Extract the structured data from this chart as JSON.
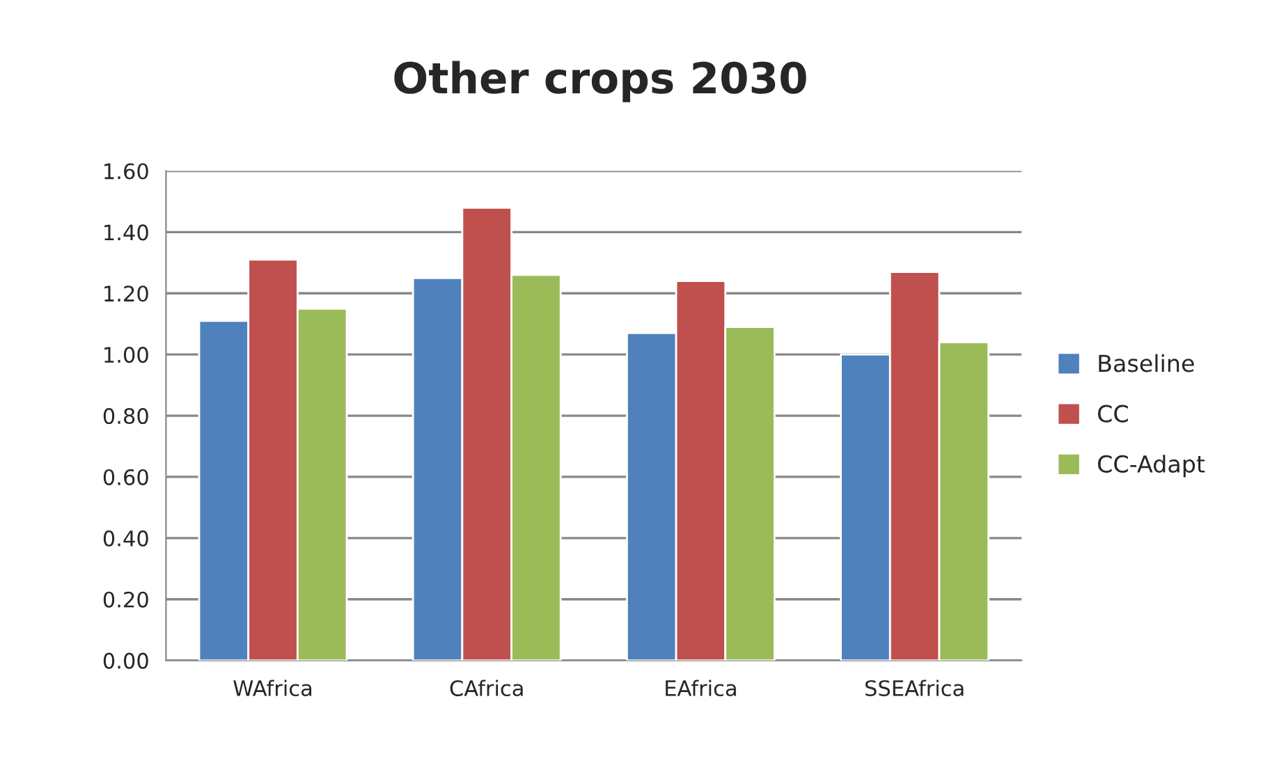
{
  "chart_data": {
    "type": "bar",
    "title": "Other crops 2030",
    "categories": [
      "WAfrica",
      "CAfrica",
      "EAfrica",
      "SSEAfrica"
    ],
    "series": [
      {
        "name": "Baseline",
        "color": "#4f81bd",
        "values": [
          1.11,
          1.25,
          1.07,
          1.0
        ]
      },
      {
        "name": "CC",
        "color": "#c0504d",
        "values": [
          1.31,
          1.48,
          1.24,
          1.27
        ]
      },
      {
        "name": "CC-Adapt",
        "color": "#9bbb59",
        "values": [
          1.15,
          1.26,
          1.09,
          1.04
        ]
      }
    ],
    "ylim": [
      0,
      1.6
    ],
    "yticks": [
      {
        "value": 0,
        "label": "0.00"
      },
      {
        "value": 0.2,
        "label": "0.20"
      },
      {
        "value": 0.4,
        "label": "0.40"
      },
      {
        "value": 0.6,
        "label": "0.60"
      },
      {
        "value": 0.8,
        "label": "0.80"
      },
      {
        "value": 1.0,
        "label": "1.00"
      },
      {
        "value": 1.2,
        "label": "1.20"
      },
      {
        "value": 1.4,
        "label": "1.40"
      },
      {
        "value": 1.6,
        "label": "1.60"
      }
    ],
    "grid": "y",
    "legend": "right"
  }
}
